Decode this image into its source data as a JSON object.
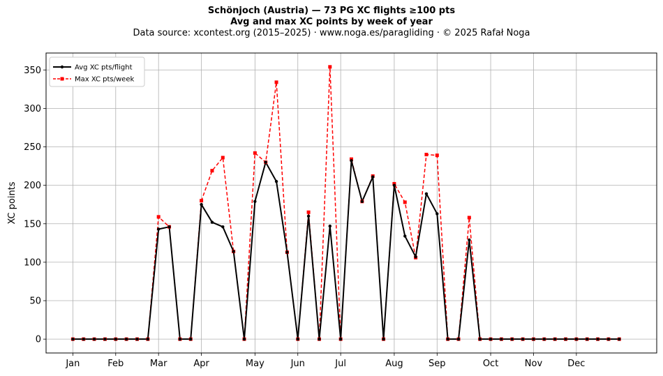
{
  "chart_data": {
    "type": "line",
    "title": "Schönjoch (Austria)  —  73 PG XC flights ≥100 pts",
    "subtitle": "Avg and max XC points by week of year",
    "source": "Data source: xcontest.org (2015–2025)  ·  www.noga.es/paragliding  ·  © 2025 Rafał Noga",
    "xlabel": "",
    "ylabel": "XC points",
    "ylim": [
      -18,
      372
    ],
    "xlim": [
      -2.5,
      54.5
    ],
    "grid": true,
    "legend_position": "upper-left",
    "x_ticks": [
      {
        "label": "Jan",
        "x": 0
      },
      {
        "label": "Feb",
        "x": 4
      },
      {
        "label": "Mar",
        "x": 8
      },
      {
        "label": "Apr",
        "x": 12
      },
      {
        "label": "May",
        "x": 17
      },
      {
        "label": "Jun",
        "x": 21
      },
      {
        "label": "Jul",
        "x": 25
      },
      {
        "label": "Aug",
        "x": 30
      },
      {
        "label": "Sep",
        "x": 34
      },
      {
        "label": "Oct",
        "x": 39
      },
      {
        "label": "Nov",
        "x": 43
      },
      {
        "label": "Dec",
        "x": 47
      }
    ],
    "y_ticks": [
      0,
      50,
      100,
      150,
      200,
      250,
      300,
      350
    ],
    "x": [
      0,
      1,
      2,
      3,
      4,
      5,
      6,
      7,
      8,
      9,
      10,
      11,
      12,
      13,
      14,
      15,
      16,
      17,
      18,
      19,
      20,
      21,
      22,
      23,
      24,
      25,
      26,
      27,
      28,
      29,
      30,
      31,
      32,
      33,
      34,
      35,
      36,
      37,
      38,
      39,
      40,
      41,
      42,
      43,
      44,
      45,
      46,
      47,
      48,
      49,
      50,
      51
    ],
    "series": [
      {
        "name": "Avg XC pts/flight",
        "color": "#000000",
        "style": "solid",
        "marker": "circle",
        "values": [
          0,
          0,
          0,
          0,
          0,
          0,
          0,
          0,
          143,
          146,
          0,
          0,
          175,
          152,
          146,
          114,
          0,
          179,
          230,
          205,
          113,
          0,
          160,
          0,
          147,
          0,
          232,
          179,
          211,
          0,
          200,
          134,
          107,
          189,
          163,
          0,
          0,
          129,
          0,
          0,
          0,
          0,
          0,
          0,
          0,
          0,
          0,
          0,
          0,
          0,
          0,
          0
        ]
      },
      {
        "name": "Max XC pts/week",
        "color": "#ff0000",
        "style": "dashed",
        "marker": "square",
        "values": [
          0,
          0,
          0,
          0,
          0,
          0,
          0,
          0,
          159,
          146,
          0,
          0,
          180,
          219,
          236,
          114,
          0,
          242,
          230,
          334,
          113,
          0,
          165,
          0,
          354,
          0,
          234,
          179,
          212,
          0,
          202,
          178,
          106,
          240,
          239,
          0,
          0,
          158,
          0,
          0,
          0,
          0,
          0,
          0,
          0,
          0,
          0,
          0,
          0,
          0,
          0,
          0
        ]
      }
    ]
  }
}
